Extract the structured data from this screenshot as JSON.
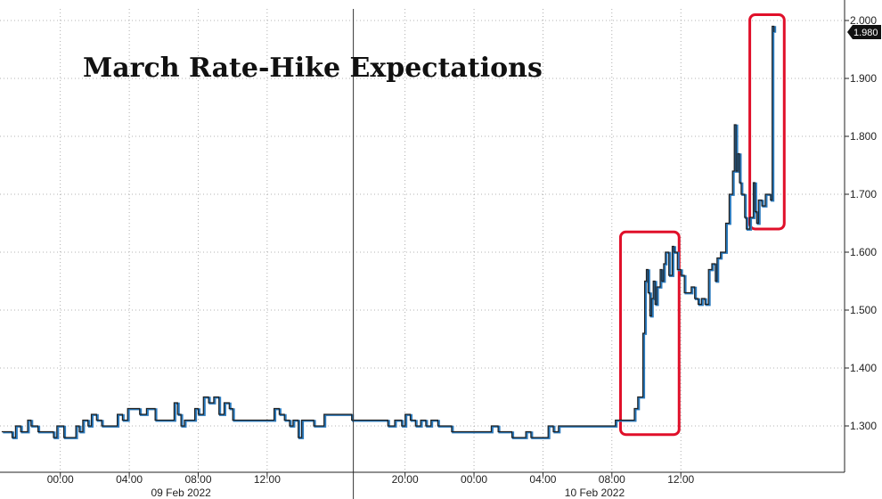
{
  "chart_data": {
    "type": "line",
    "title": "March Rate-Hike Expectations",
    "xlabel": "",
    "ylabel": "",
    "x_unit": "hours from 09 Feb 2022 00:00",
    "xlim": [
      -3.5,
      45.5
    ],
    "ylim": [
      1.22,
      2.02
    ],
    "y_ticks": [
      1.3,
      1.4,
      1.5,
      1.6,
      1.7,
      1.8,
      1.9,
      2.0
    ],
    "y_tick_labels": [
      "1.300",
      "1.400",
      "1.500",
      "1.600",
      "1.700",
      "1.800",
      "1.900",
      "2.000"
    ],
    "x_ticks": [
      0,
      4,
      8,
      12,
      20,
      24,
      28,
      32,
      36
    ],
    "x_tick_labels": [
      "00:00",
      "04:00",
      "08:00",
      "12:00",
      "20:00",
      "00:00",
      "04:00",
      "08:00",
      "12:00"
    ],
    "date_labels": [
      {
        "x": 7,
        "label": "09 Feb 2022"
      },
      {
        "x": 31,
        "label": "10 Feb 2022"
      }
    ],
    "day_separator_x": 17,
    "last_value": 1.98,
    "last_value_label": "1.980",
    "grid": true,
    "series": [
      {
        "color": "#1f1f1f",
        "accent_color": "#2b7bbf",
        "points": [
          [
            -3.4,
            1.29
          ],
          [
            -2.8,
            1.28
          ],
          [
            -2.6,
            1.3
          ],
          [
            -2.3,
            1.29
          ],
          [
            -1.9,
            1.31
          ],
          [
            -1.7,
            1.3
          ],
          [
            -1.3,
            1.29
          ],
          [
            -0.8,
            1.29
          ],
          [
            -0.4,
            1.28
          ],
          [
            -0.2,
            1.3
          ],
          [
            0.2,
            1.28
          ],
          [
            0.6,
            1.28
          ],
          [
            0.9,
            1.3
          ],
          [
            1.1,
            1.29
          ],
          [
            1.3,
            1.31
          ],
          [
            1.6,
            1.3
          ],
          [
            1.8,
            1.32
          ],
          [
            2.1,
            1.31
          ],
          [
            2.4,
            1.3
          ],
          [
            2.6,
            1.3
          ],
          [
            3.0,
            1.3
          ],
          [
            3.3,
            1.32
          ],
          [
            3.6,
            1.31
          ],
          [
            3.9,
            1.33
          ],
          [
            4.2,
            1.33
          ],
          [
            4.6,
            1.32
          ],
          [
            5.0,
            1.33
          ],
          [
            5.5,
            1.31
          ],
          [
            5.9,
            1.31
          ],
          [
            6.3,
            1.31
          ],
          [
            6.6,
            1.34
          ],
          [
            6.8,
            1.32
          ],
          [
            7.0,
            1.3
          ],
          [
            7.2,
            1.31
          ],
          [
            7.5,
            1.31
          ],
          [
            7.8,
            1.33
          ],
          [
            8.0,
            1.32
          ],
          [
            8.3,
            1.35
          ],
          [
            8.6,
            1.34
          ],
          [
            8.9,
            1.35
          ],
          [
            9.2,
            1.32
          ],
          [
            9.5,
            1.34
          ],
          [
            9.8,
            1.33
          ],
          [
            10.0,
            1.31
          ],
          [
            10.5,
            1.31
          ],
          [
            11.0,
            1.31
          ],
          [
            11.5,
            1.31
          ],
          [
            12.0,
            1.31
          ],
          [
            12.4,
            1.33
          ],
          [
            12.7,
            1.32
          ],
          [
            13.0,
            1.31
          ],
          [
            13.3,
            1.3
          ],
          [
            13.5,
            1.31
          ],
          [
            13.8,
            1.28
          ],
          [
            14.0,
            1.31
          ],
          [
            14.3,
            1.31
          ],
          [
            14.7,
            1.3
          ],
          [
            15.0,
            1.3
          ],
          [
            15.3,
            1.32
          ],
          [
            15.7,
            1.32
          ],
          [
            16.0,
            1.32
          ],
          [
            16.5,
            1.32
          ],
          [
            16.9,
            1.31
          ],
          [
            17.3,
            1.31
          ],
          [
            17.7,
            1.31
          ],
          [
            18.0,
            1.31
          ],
          [
            18.5,
            1.31
          ],
          [
            19.0,
            1.3
          ],
          [
            19.4,
            1.31
          ],
          [
            19.8,
            1.3
          ],
          [
            20.0,
            1.32
          ],
          [
            20.3,
            1.31
          ],
          [
            20.6,
            1.3
          ],
          [
            20.9,
            1.31
          ],
          [
            21.2,
            1.3
          ],
          [
            21.5,
            1.31
          ],
          [
            21.9,
            1.3
          ],
          [
            22.3,
            1.3
          ],
          [
            22.7,
            1.29
          ],
          [
            23.0,
            1.29
          ],
          [
            23.5,
            1.29
          ],
          [
            24.0,
            1.29
          ],
          [
            24.5,
            1.29
          ],
          [
            25.0,
            1.3
          ],
          [
            25.4,
            1.29
          ],
          [
            25.8,
            1.29
          ],
          [
            26.2,
            1.28
          ],
          [
            26.6,
            1.28
          ],
          [
            27.0,
            1.29
          ],
          [
            27.3,
            1.28
          ],
          [
            27.6,
            1.28
          ],
          [
            28.0,
            1.28
          ],
          [
            28.3,
            1.3
          ],
          [
            28.6,
            1.29
          ],
          [
            28.9,
            1.3
          ],
          [
            29.2,
            1.3
          ],
          [
            29.5,
            1.3
          ],
          [
            30.0,
            1.3
          ],
          [
            30.5,
            1.3
          ],
          [
            31.0,
            1.3
          ],
          [
            31.5,
            1.3
          ],
          [
            32.0,
            1.3
          ],
          [
            32.2,
            1.31
          ],
          [
            32.5,
            1.31
          ],
          [
            32.8,
            1.31
          ],
          [
            33.1,
            1.31
          ],
          [
            33.3,
            1.33
          ],
          [
            33.5,
            1.35
          ],
          [
            33.7,
            1.35
          ],
          [
            33.8,
            1.46
          ],
          [
            33.9,
            1.55
          ],
          [
            34.0,
            1.57
          ],
          [
            34.1,
            1.53
          ],
          [
            34.2,
            1.49
          ],
          [
            34.3,
            1.52
          ],
          [
            34.4,
            1.55
          ],
          [
            34.5,
            1.51
          ],
          [
            34.6,
            1.54
          ],
          [
            34.8,
            1.57
          ],
          [
            34.9,
            1.55
          ],
          [
            35.0,
            1.58
          ],
          [
            35.1,
            1.6
          ],
          [
            35.3,
            1.56
          ],
          [
            35.5,
            1.61
          ],
          [
            35.6,
            1.6
          ],
          [
            35.8,
            1.57
          ],
          [
            36.0,
            1.56
          ],
          [
            36.2,
            1.53
          ],
          [
            36.4,
            1.53
          ],
          [
            36.6,
            1.54
          ],
          [
            36.8,
            1.52
          ],
          [
            37.0,
            1.51
          ],
          [
            37.2,
            1.52
          ],
          [
            37.4,
            1.51
          ],
          [
            37.6,
            1.57
          ],
          [
            37.8,
            1.58
          ],
          [
            38.0,
            1.55
          ],
          [
            38.1,
            1.59
          ],
          [
            38.3,
            1.6
          ],
          [
            38.5,
            1.6
          ],
          [
            38.6,
            1.65
          ],
          [
            38.8,
            1.7
          ],
          [
            39.0,
            1.74
          ],
          [
            39.1,
            1.82
          ],
          [
            39.2,
            1.74
          ],
          [
            39.3,
            1.77
          ],
          [
            39.4,
            1.72
          ],
          [
            39.5,
            1.7
          ],
          [
            39.7,
            1.66
          ],
          [
            39.8,
            1.64
          ],
          [
            40.0,
            1.66
          ],
          [
            40.2,
            1.72
          ],
          [
            40.3,
            1.67
          ],
          [
            40.4,
            1.65
          ],
          [
            40.5,
            1.69
          ],
          [
            40.7,
            1.68
          ],
          [
            40.9,
            1.7
          ],
          [
            41.1,
            1.7
          ],
          [
            41.2,
            1.69
          ],
          [
            41.3,
            1.99
          ],
          [
            41.4,
            1.98
          ]
        ]
      }
    ],
    "annotations": [
      {
        "type": "box",
        "color": "#e0102a",
        "x0": 32.5,
        "x1": 35.9,
        "y0": 1.285,
        "y1": 1.635
      },
      {
        "type": "box",
        "color": "#e0102a",
        "x0": 40.0,
        "x1": 42.0,
        "y0": 1.64,
        "y1": 2.01
      }
    ]
  }
}
